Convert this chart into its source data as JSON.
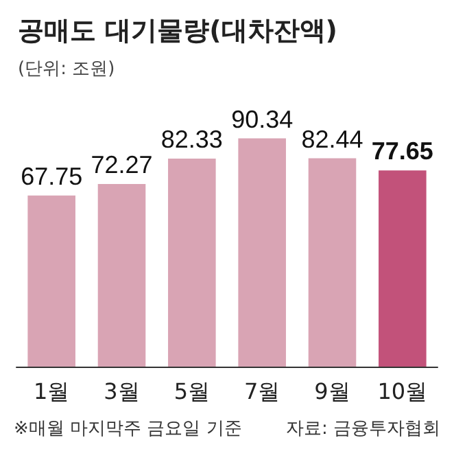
{
  "chart_data": {
    "type": "bar",
    "title": "공매도 대기물량(대차잔액)",
    "subtitle": "(단위: 조원)",
    "categories": [
      "1월",
      "3월",
      "5월",
      "7월",
      "9월",
      "10월"
    ],
    "values": [
      67.75,
      72.27,
      82.33,
      90.34,
      82.44,
      77.65
    ],
    "colors": [
      "#d9a4b4",
      "#d9a4b4",
      "#d9a4b4",
      "#d9a4b4",
      "#d9a4b4",
      "#c2527a"
    ],
    "data_labels": true,
    "tick_labels": "x",
    "annotations": [
      "※매월 마지막주 금요일 기준",
      "자료: 금융투자협회"
    ]
  }
}
